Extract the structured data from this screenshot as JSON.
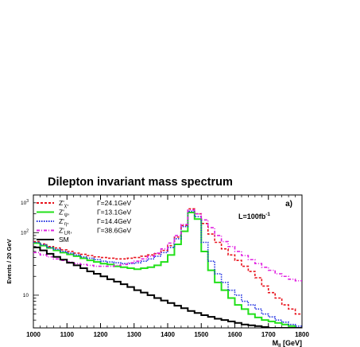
{
  "chart_data": {
    "type": "line",
    "title": "Dilepton invariant mass spectrum",
    "panel_label": "a)",
    "luminosity_base": "L=100fb",
    "luminosity_exp": "-1",
    "xlabel_base": "M",
    "xlabel_sub": "ll",
    "xlabel_unit": " [GeV]",
    "ylabel": "Events / 20 GeV",
    "xlim": [
      1000,
      1800
    ],
    "ylim": [
      3,
      400
    ],
    "log_y": true,
    "x_ticks": [
      1000,
      1100,
      1200,
      1300,
      1400,
      1500,
      1600,
      1700,
      1800
    ],
    "x_tick_labels": [
      "1000",
      "1100",
      "1200",
      "1300",
      "1400",
      "1500",
      "1600",
      "1700",
      "1800"
    ],
    "y_ticks": [
      10,
      100
    ],
    "y_tick_base": "10",
    "y_tick_exps": [
      "",
      "2"
    ],
    "bin_edges": [
      1000,
      1020,
      1040,
      1060,
      1080,
      1100,
      1120,
      1140,
      1160,
      1180,
      1200,
      1220,
      1240,
      1260,
      1280,
      1300,
      1320,
      1340,
      1360,
      1380,
      1400,
      1420,
      1440,
      1460,
      1480,
      1500,
      1520,
      1540,
      1560,
      1580,
      1600,
      1620,
      1640,
      1660,
      1680,
      1700,
      1720,
      1740,
      1760,
      1780,
      1800
    ],
    "legend_position": "top-left",
    "series": [
      {
        "name": "Z'",
        "sub": "χ",
        "width_label": "Γ=24.1GeV",
        "color": "#e8101a",
        "dash": "3,2",
        "values": [
          72,
          66,
          60,
          57,
          53,
          50,
          47,
          45,
          43,
          41,
          40,
          39,
          38,
          38,
          39,
          40,
          42,
          44,
          46,
          52,
          62,
          85,
          130,
          240,
          200,
          140,
          95,
          70,
          55,
          44,
          36,
          29,
          24,
          19,
          14,
          11,
          9,
          7,
          6,
          5
        ]
      },
      {
        "name": "Z'",
        "sub": "ψ",
        "width_label": "Γ=13.1GeV",
        "color": "#22e01a",
        "dash": "",
        "values": [
          68,
          62,
          57,
          52,
          48,
          45,
          42,
          39,
          36,
          34,
          32,
          31,
          29,
          28,
          27,
          26,
          27,
          28,
          30,
          34,
          44,
          65,
          105,
          210,
          165,
          50,
          25,
          16,
          12,
          9,
          7,
          6,
          5,
          4.4,
          4,
          3.8,
          3.6,
          3.4,
          3.2,
          3
        ]
      },
      {
        "name": "Z'",
        "sub": "η",
        "width_label": "Γ=14.4GeV",
        "color": "#2030e0",
        "dash": "1.5,1.5",
        "values": [
          70,
          64,
          58,
          54,
          50,
          47,
          44,
          41,
          39,
          37,
          35,
          34,
          33,
          32,
          32,
          33,
          35,
          38,
          42,
          48,
          58,
          80,
          125,
          220,
          180,
          70,
          35,
          22,
          16,
          12,
          10,
          8,
          7,
          6,
          5,
          4.5,
          4,
          3.7,
          3.4,
          3.2
        ]
      },
      {
        "name": "Z'",
        "sub": "LR",
        "width_label": "Γ=38.6GeV",
        "color": "#e020e0",
        "dash": "4,2,1,2",
        "values": [
          48,
          44,
          41,
          38,
          36,
          34,
          32,
          31,
          30,
          29,
          29,
          29,
          30,
          31,
          33,
          35,
          38,
          42,
          47,
          55,
          68,
          90,
          135,
          230,
          200,
          160,
          120,
          90,
          72,
          60,
          50,
          43,
          37,
          32,
          28,
          25,
          22,
          20,
          18,
          17
        ]
      },
      {
        "name": "SM",
        "sub": "",
        "width_label": "",
        "color": "#000000",
        "dash": "",
        "values": [
          58,
          52,
          46,
          41,
          37,
          33,
          30,
          27,
          24,
          22,
          20,
          18,
          16.5,
          15,
          13.5,
          12,
          11,
          10,
          9,
          8.2,
          7.5,
          6.8,
          6.2,
          5.6,
          5.2,
          4.8,
          4.5,
          4.2,
          4,
          3.8,
          3.6,
          3.4,
          3.3,
          3.2,
          3.1,
          3,
          3,
          3,
          3,
          3
        ]
      }
    ]
  }
}
